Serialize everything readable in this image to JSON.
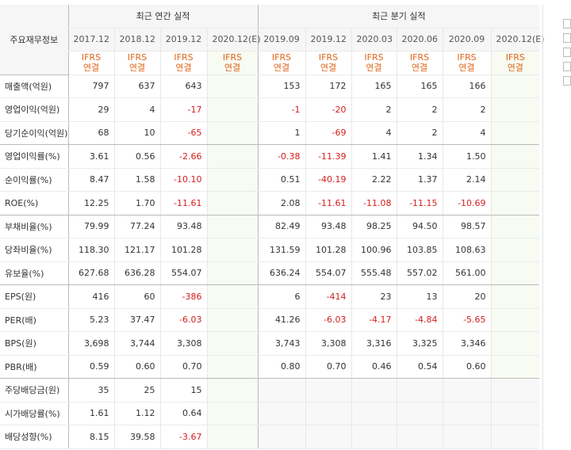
{
  "header": {
    "row_label": "주요재무정보",
    "annual_title": "최근 연간 실적",
    "quarter_title": "최근 분기 실적",
    "annual_periods": [
      "2017.12",
      "2018.12",
      "2019.12",
      "2020.12(E)"
    ],
    "quarter_periods": [
      "2019.09",
      "2019.12",
      "2020.03",
      "2020.06",
      "2020.09",
      "2020.12(E)"
    ],
    "ifrs_top": "IFRS",
    "ifrs_bottom": "연결"
  },
  "rows": [
    {
      "label": "매출액(억원)",
      "annual": [
        "797",
        "637",
        "643",
        ""
      ],
      "quarter": [
        "153",
        "172",
        "165",
        "165",
        "166",
        ""
      ]
    },
    {
      "label": "영업이익(억원)",
      "annual": [
        "29",
        "4",
        "-17",
        ""
      ],
      "quarter": [
        "-1",
        "-20",
        "2",
        "2",
        "2",
        ""
      ]
    },
    {
      "label": "당기순이익(억원)",
      "annual": [
        "68",
        "10",
        "-65",
        ""
      ],
      "quarter": [
        "1",
        "-69",
        "4",
        "2",
        "4",
        ""
      ]
    },
    {
      "label": "영업이익률(%)",
      "annual": [
        "3.61",
        "0.56",
        "-2.66",
        ""
      ],
      "quarter": [
        "-0.38",
        "-11.39",
        "1.41",
        "1.34",
        "1.50",
        ""
      ]
    },
    {
      "label": "순이익률(%)",
      "annual": [
        "8.47",
        "1.58",
        "-10.10",
        ""
      ],
      "quarter": [
        "0.51",
        "-40.19",
        "2.22",
        "1.37",
        "2.14",
        ""
      ]
    },
    {
      "label": "ROE(%)",
      "annual": [
        "12.25",
        "1.70",
        "-11.61",
        ""
      ],
      "quarter": [
        "2.08",
        "-11.61",
        "-11.08",
        "-11.15",
        "-10.69",
        ""
      ]
    },
    {
      "label": "부채비율(%)",
      "annual": [
        "79.99",
        "77.24",
        "93.48",
        ""
      ],
      "quarter": [
        "82.49",
        "93.48",
        "98.25",
        "94.50",
        "98.57",
        ""
      ]
    },
    {
      "label": "당좌비율(%)",
      "annual": [
        "118.30",
        "121.17",
        "101.28",
        ""
      ],
      "quarter": [
        "131.59",
        "101.28",
        "100.96",
        "103.85",
        "108.63",
        ""
      ]
    },
    {
      "label": "유보율(%)",
      "annual": [
        "627.68",
        "636.28",
        "554.07",
        ""
      ],
      "quarter": [
        "636.24",
        "554.07",
        "555.48",
        "557.02",
        "561.00",
        ""
      ]
    },
    {
      "label": "EPS(원)",
      "annual": [
        "416",
        "60",
        "-386",
        ""
      ],
      "quarter": [
        "6",
        "-414",
        "23",
        "13",
        "20",
        ""
      ]
    },
    {
      "label": "PER(배)",
      "annual": [
        "5.23",
        "37.47",
        "-6.03",
        ""
      ],
      "quarter": [
        "41.26",
        "-6.03",
        "-4.17",
        "-4.84",
        "-5.65",
        ""
      ]
    },
    {
      "label": "BPS(원)",
      "annual": [
        "3,698",
        "3,744",
        "3,308",
        ""
      ],
      "quarter": [
        "3,743",
        "3,308",
        "3,316",
        "3,325",
        "3,346",
        ""
      ]
    },
    {
      "label": "PBR(배)",
      "annual": [
        "0.59",
        "0.60",
        "0.70",
        ""
      ],
      "quarter": [
        "0.80",
        "0.70",
        "0.46",
        "0.54",
        "0.60",
        ""
      ]
    },
    {
      "label": "주당배당금(원)",
      "annual": [
        "35",
        "25",
        "15",
        ""
      ],
      "quarter": [
        "",
        "",
        "",
        "",
        "",
        ""
      ]
    },
    {
      "label": "시가배당률(%)",
      "annual": [
        "1.61",
        "1.12",
        "0.64",
        ""
      ],
      "quarter": [
        "",
        "",
        "",
        "",
        "",
        ""
      ]
    },
    {
      "label": "배당성향(%)",
      "annual": [
        "8.15",
        "39.58",
        "-3.67",
        ""
      ],
      "quarter": [
        "",
        "",
        "",
        "",
        "",
        ""
      ]
    }
  ],
  "colors": {
    "negative": "#d42020",
    "ifrs": "#e0661a",
    "estimate": "#3a8a3a",
    "header_bg": "#f6f6f6"
  }
}
